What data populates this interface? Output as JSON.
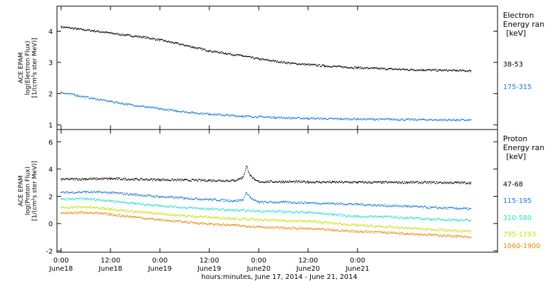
{
  "chart_data": [
    {
      "type": "scatter",
      "ylabel_lines": [
        "ACE EPAM",
        "log(Electron Flux)",
        "[1/(cm²s ster MeV)]"
      ],
      "legend_title": [
        "Electron",
        "Energy ran",
        "[keV]"
      ],
      "ylim": [
        0.85,
        4.8
      ],
      "yticks": [
        1,
        2,
        3,
        4
      ],
      "series": [
        {
          "name": "38-53",
          "color": "#000000",
          "x": [
            0,
            4,
            8,
            12,
            16,
            20,
            24,
            28,
            32,
            36,
            40,
            44,
            48,
            52,
            56,
            60,
            64,
            68,
            72,
            76,
            80,
            84,
            88,
            92,
            96,
            99.5
          ],
          "y": [
            4.15,
            4.08,
            4.02,
            3.95,
            3.88,
            3.82,
            3.73,
            3.62,
            3.5,
            3.38,
            3.3,
            3.22,
            3.12,
            3.05,
            2.98,
            2.94,
            2.9,
            2.87,
            2.84,
            2.82,
            2.8,
            2.78,
            2.77,
            2.76,
            2.75,
            2.74
          ]
        },
        {
          "name": "175-315",
          "color": "#1a78d4",
          "x": [
            0,
            4,
            8,
            12,
            16,
            20,
            24,
            28,
            32,
            36,
            40,
            44,
            48,
            52,
            56,
            60,
            64,
            68,
            72,
            76,
            80,
            84,
            88,
            92,
            96,
            99.5
          ],
          "y": [
            2.05,
            1.95,
            1.85,
            1.76,
            1.67,
            1.6,
            1.52,
            1.46,
            1.4,
            1.36,
            1.32,
            1.29,
            1.27,
            1.25,
            1.23,
            1.22,
            1.21,
            1.2,
            1.2,
            1.19,
            1.19,
            1.18,
            1.18,
            1.17,
            1.17,
            1.16
          ]
        }
      ]
    },
    {
      "type": "scatter",
      "ylabel_lines": [
        "ACE EPAM",
        "log(Proton Flux)",
        "[1/(cm²s ster MeV)]"
      ],
      "legend_title": [
        "Proton",
        "Energy ran",
        "[keV]"
      ],
      "ylim": [
        -2.1,
        6.9
      ],
      "yticks": [
        -2,
        0,
        2,
        4,
        6
      ],
      "series": [
        {
          "name": "47-68",
          "color": "#000000",
          "x": [
            0,
            6,
            12,
            18,
            24,
            30,
            36,
            42,
            44,
            45,
            46,
            47,
            48,
            54,
            60,
            66,
            72,
            78,
            84,
            90,
            96,
            99.5
          ],
          "y": [
            3.28,
            3.3,
            3.32,
            3.28,
            3.25,
            3.22,
            3.2,
            3.18,
            3.4,
            4.2,
            3.5,
            3.2,
            3.1,
            3.1,
            3.08,
            3.07,
            3.06,
            3.05,
            3.05,
            3.04,
            3.03,
            3.02
          ]
        },
        {
          "name": "115-195",
          "color": "#1a78d4",
          "x": [
            0,
            6,
            12,
            18,
            24,
            30,
            36,
            42,
            44,
            45,
            46,
            47,
            48,
            54,
            60,
            66,
            72,
            78,
            84,
            90,
            96,
            99.5
          ],
          "y": [
            2.3,
            2.35,
            2.3,
            2.15,
            2.0,
            1.9,
            1.8,
            1.7,
            1.75,
            2.3,
            1.9,
            1.7,
            1.6,
            1.6,
            1.55,
            1.5,
            1.45,
            1.35,
            1.3,
            1.2,
            1.15,
            1.1
          ]
        },
        {
          "name": "310-580",
          "color": "#22e0c8",
          "x": [
            0,
            6,
            12,
            18,
            24,
            30,
            36,
            42,
            48,
            54,
            60,
            66,
            72,
            78,
            84,
            90,
            96,
            99.5
          ],
          "y": [
            1.8,
            1.85,
            1.7,
            1.5,
            1.35,
            1.2,
            1.1,
            1.0,
            0.95,
            0.9,
            0.85,
            0.7,
            0.55,
            0.55,
            0.45,
            0.35,
            0.3,
            0.25
          ]
        },
        {
          "name": "795-1193",
          "color": "#c8e000",
          "x": [
            0,
            6,
            12,
            18,
            24,
            30,
            36,
            42,
            48,
            54,
            60,
            66,
            72,
            78,
            84,
            90,
            96,
            99.5
          ],
          "y": [
            1.2,
            1.25,
            1.1,
            0.9,
            0.75,
            0.6,
            0.5,
            0.4,
            0.3,
            0.25,
            0.2,
            0.05,
            -0.1,
            -0.2,
            -0.3,
            -0.4,
            -0.5,
            -0.55
          ]
        },
        {
          "name": "1060-1900",
          "color": "#e8870a",
          "x": [
            0,
            6,
            12,
            18,
            24,
            30,
            36,
            42,
            48,
            54,
            60,
            66,
            72,
            78,
            84,
            90,
            96,
            99.5
          ],
          "y": [
            0.8,
            0.85,
            0.7,
            0.5,
            0.3,
            0.15,
            0.0,
            -0.1,
            -0.2,
            -0.3,
            -0.35,
            -0.45,
            -0.55,
            -0.6,
            -0.7,
            -0.8,
            -0.9,
            -1.0
          ]
        }
      ]
    }
  ],
  "x_axis": {
    "xlim": [
      -1,
      106
    ],
    "ticks": [
      {
        "x": 0,
        "time": "0:00",
        "date": "June18"
      },
      {
        "x": 12,
        "time": "12:00",
        "date": "June18"
      },
      {
        "x": 24,
        "time": "0:00",
        "date": "June19"
      },
      {
        "x": 36,
        "time": "12:00",
        "date": "June19"
      },
      {
        "x": 48,
        "time": "0:00",
        "date": "June20"
      },
      {
        "x": 60,
        "time": "12:00",
        "date": "June20"
      },
      {
        "x": 72,
        "time": "0:00",
        "date": "June21"
      }
    ],
    "label": "hours:minutes, June 17, 2014 - June 21, 2014"
  }
}
